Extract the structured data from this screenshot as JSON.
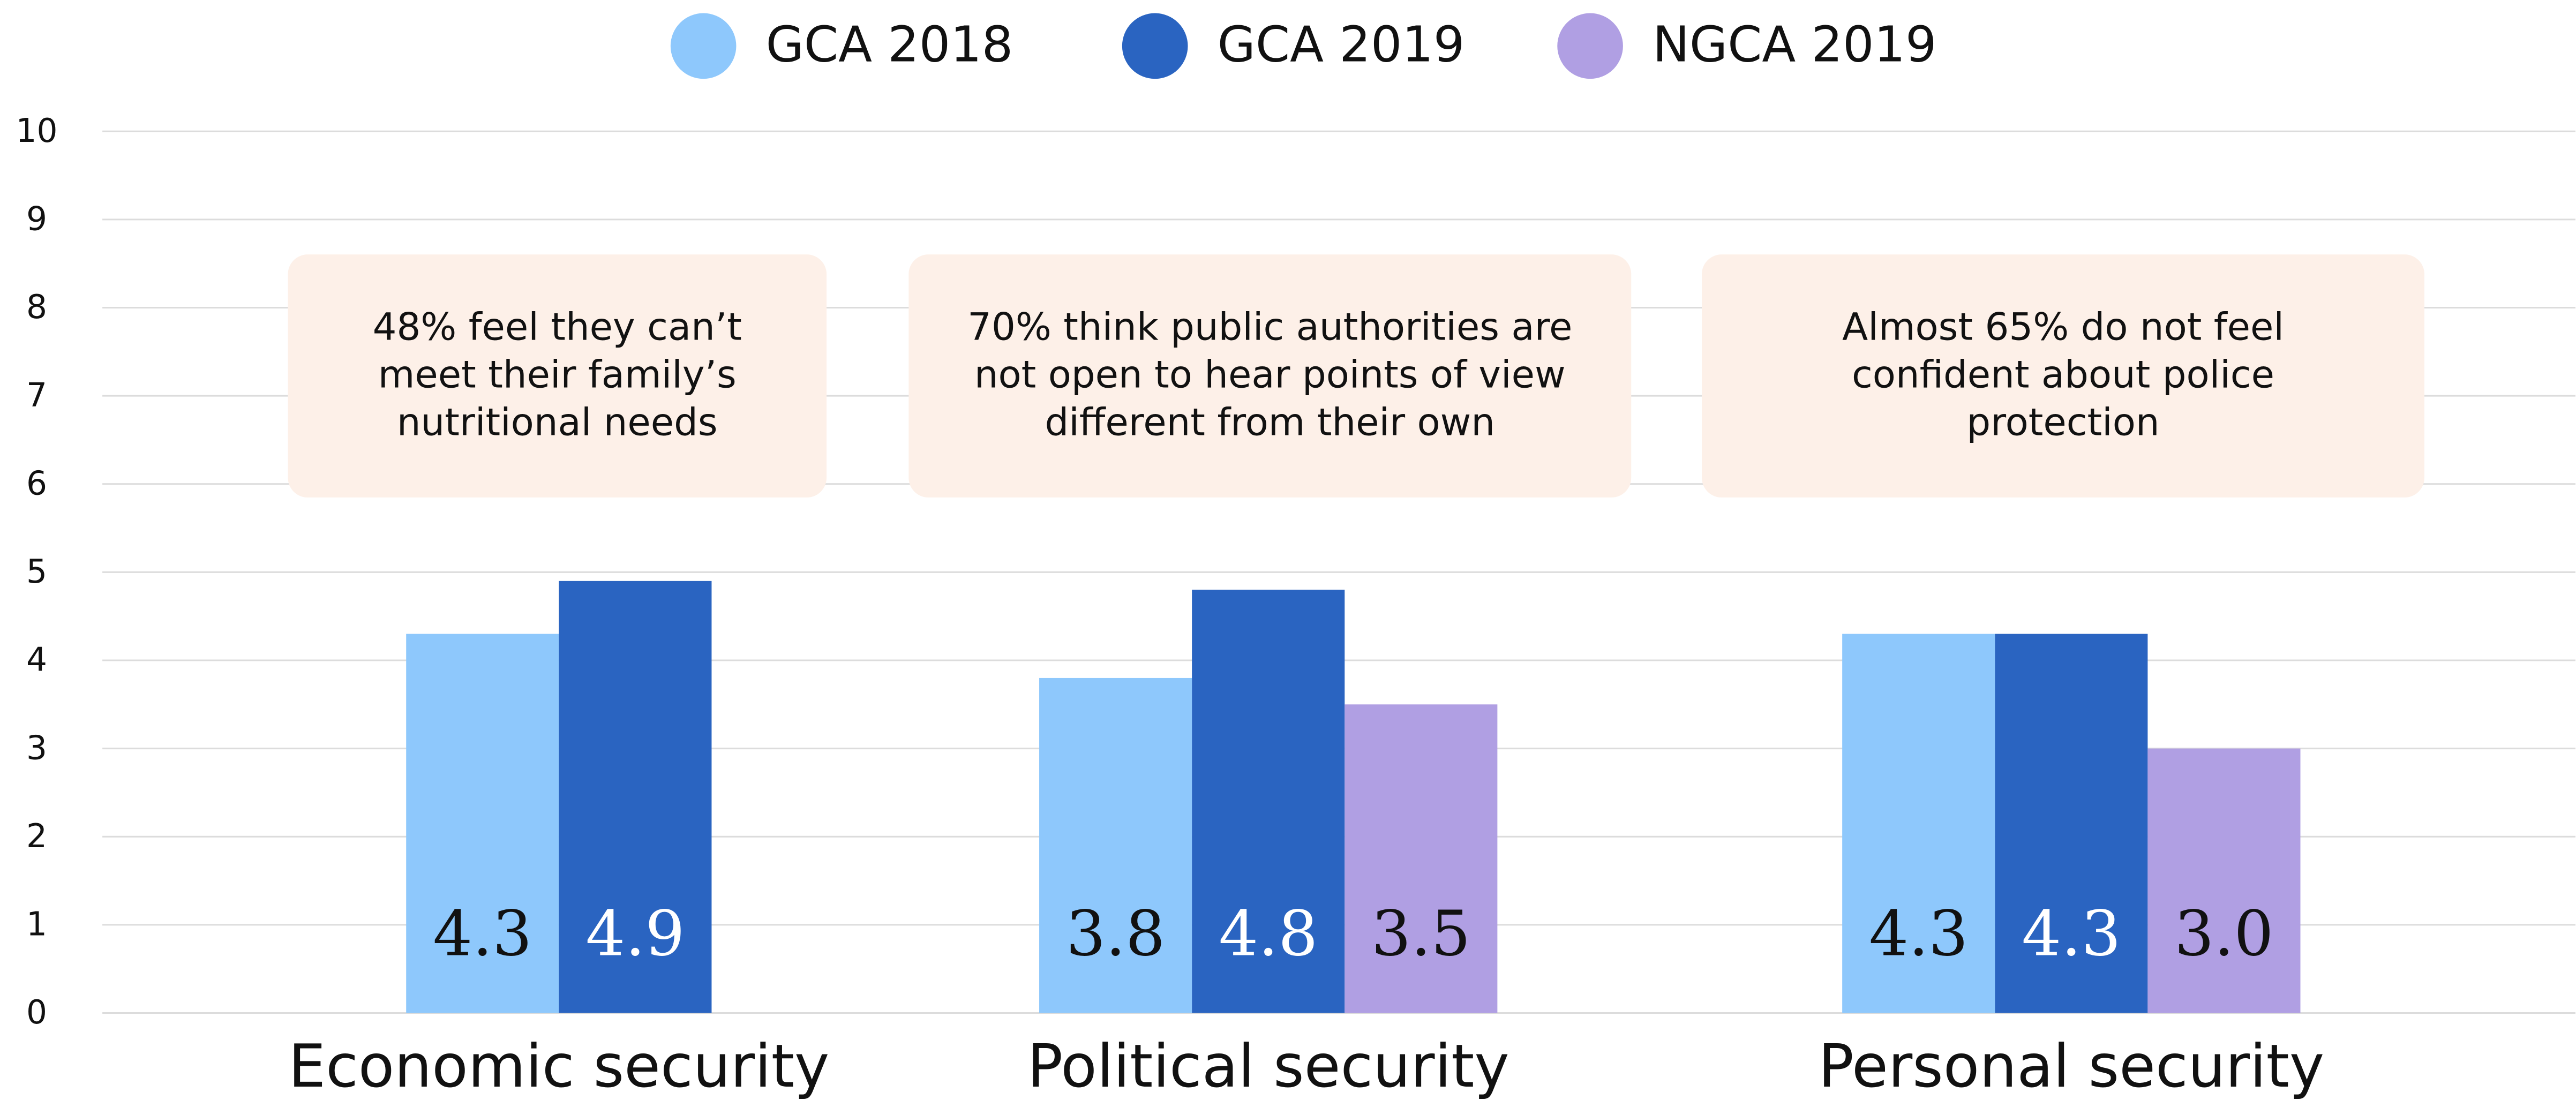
{
  "chart_data": {
    "type": "bar",
    "categories": [
      "Economic security",
      "Political security",
      "Personal security"
    ],
    "series": [
      {
        "name": "GCA 2018",
        "color": "#8ec8fc",
        "values": [
          4.3,
          3.8,
          4.3
        ]
      },
      {
        "name": "GCA 2019",
        "color": "#2a64c1",
        "values": [
          4.9,
          4.8,
          4.3
        ]
      },
      {
        "name": "NGCA 2019",
        "color": "#b09fe3",
        "values": [
          null,
          3.5,
          3
        ],
        "value_labels": [
          null,
          "3.5",
          "3.0"
        ]
      }
    ],
    "annotations": [
      "48% feel they can’t meet their family’s nutritional needs",
      "70% think public authorities are not open to hear points of view different from their own",
      "Almost 65% do not feel confident about police protection"
    ],
    "ylim": [
      0,
      10
    ],
    "yticks": [
      0,
      1,
      2,
      3,
      4,
      5,
      6,
      7,
      8,
      9,
      10
    ],
    "grid": true,
    "legend": "top"
  }
}
